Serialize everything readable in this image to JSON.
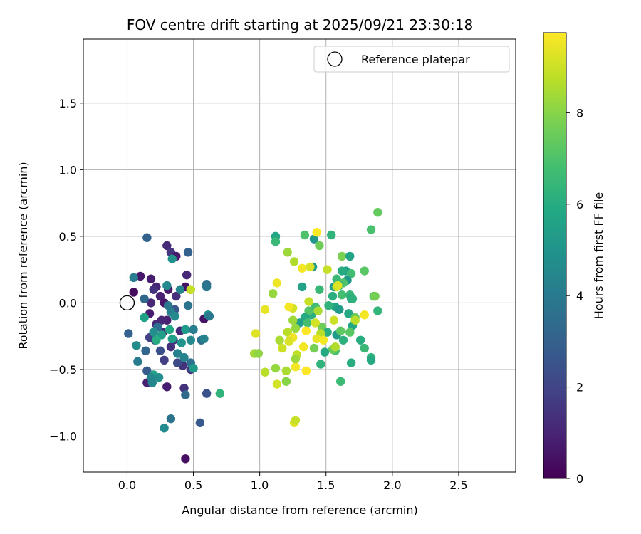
{
  "chart_data": {
    "type": "scatter",
    "title": "FOV centre drift starting at 2025/09/21 23:30:18",
    "xlabel": "Angular distance from reference (arcmin)",
    "ylabel": "Rotation from reference (arcmin)",
    "xlim": [
      -0.33,
      2.93
    ],
    "ylim": [
      -1.27,
      1.98
    ],
    "xticks": [
      0.0,
      0.5,
      1.0,
      1.5,
      2.0,
      2.5
    ],
    "yticks": [
      -1.0,
      -0.5,
      0.0,
      0.5,
      1.0,
      1.5
    ],
    "xtick_labels": [
      "0.0",
      "0.5",
      "1.0",
      "1.5",
      "2.0",
      "2.5"
    ],
    "ytick_labels": [
      "−1.0",
      "−0.5",
      "0.0",
      "0.5",
      "1.0",
      "1.5"
    ],
    "grid": true,
    "legend": {
      "position": "top-right",
      "label": "Reference platepar"
    },
    "reference_point": {
      "x": 0.0,
      "y": 0.0
    },
    "colorbar": {
      "label": "Hours from first FF file",
      "min": 0,
      "max": 9.75,
      "ticks": [
        0,
        2,
        4,
        6,
        8
      ],
      "tick_labels": [
        "0",
        "2",
        "4",
        "6",
        "8"
      ],
      "colormap": "viridis"
    },
    "points": [
      [
        0.05,
        0.08,
        0.3
      ],
      [
        0.1,
        0.2,
        0.6
      ],
      [
        0.18,
        0.18,
        0.8
      ],
      [
        0.22,
        0.12,
        1.0
      ],
      [
        0.18,
        0.0,
        1.1
      ],
      [
        0.25,
        0.05,
        0.9
      ],
      [
        0.3,
        0.43,
        1.2
      ],
      [
        0.33,
        0.38,
        1.5
      ],
      [
        0.37,
        0.35,
        0.7
      ],
      [
        0.45,
        0.21,
        1.1
      ],
      [
        0.2,
        0.1,
        1.4
      ],
      [
        0.28,
        0.0,
        0.6
      ],
      [
        0.31,
        0.1,
        0.7
      ],
      [
        0.37,
        0.05,
        1.3
      ],
      [
        0.44,
        0.12,
        0.5
      ],
      [
        0.17,
        -0.08,
        0.8
      ],
      [
        0.22,
        -0.16,
        1.0
      ],
      [
        0.27,
        -0.22,
        1.2
      ],
      [
        0.3,
        -0.13,
        0.9
      ],
      [
        0.35,
        -0.28,
        1.5
      ],
      [
        0.4,
        -0.21,
        1.1
      ],
      [
        0.33,
        -0.33,
        1.3
      ],
      [
        0.28,
        -0.43,
        1.8
      ],
      [
        0.21,
        -0.28,
        2.0
      ],
      [
        0.17,
        -0.26,
        1.9
      ],
      [
        0.15,
        -0.6,
        0.9
      ],
      [
        0.3,
        -0.63,
        0.8
      ],
      [
        0.43,
        -0.64,
        1.4
      ],
      [
        0.44,
        -1.17,
        0.4
      ],
      [
        0.58,
        -0.12,
        0.5
      ],
      [
        0.48,
        -0.5,
        1.6
      ],
      [
        0.42,
        -0.47,
        1.4
      ],
      [
        0.38,
        -0.45,
        2.2
      ],
      [
        0.6,
        -0.68,
        2.5
      ],
      [
        0.55,
        -0.9,
        2.7
      ],
      [
        0.26,
        -0.13,
        1.1
      ],
      [
        0.36,
        -0.05,
        2.6
      ],
      [
        0.25,
        -0.36,
        2.4
      ],
      [
        0.15,
        0.49,
        3.1
      ],
      [
        0.46,
        0.38,
        3.0
      ],
      [
        0.34,
        0.33,
        4.9
      ],
      [
        0.3,
        0.13,
        4.6
      ],
      [
        0.13,
        0.03,
        3.3
      ],
      [
        0.05,
        0.19,
        4.1
      ],
      [
        0.01,
        -0.23,
        3.0
      ],
      [
        0.07,
        -0.32,
        4.7
      ],
      [
        0.14,
        -0.36,
        3.2
      ],
      [
        0.08,
        -0.44,
        4.0
      ],
      [
        0.15,
        -0.51,
        2.8
      ],
      [
        0.19,
        -0.6,
        4.5
      ],
      [
        0.2,
        -0.54,
        5.6
      ],
      [
        0.24,
        -0.56,
        4.8
      ],
      [
        0.28,
        -0.94,
        4.6
      ],
      [
        0.33,
        -0.87,
        3.7
      ],
      [
        0.44,
        -0.69,
        3.4
      ],
      [
        0.48,
        -0.45,
        3.6
      ],
      [
        0.5,
        -0.49,
        5.2
      ],
      [
        0.56,
        -0.28,
        3.5
      ],
      [
        0.58,
        -0.27,
        4.3
      ],
      [
        0.61,
        -0.09,
        4.9
      ],
      [
        0.62,
        -0.1,
        3.9
      ],
      [
        0.6,
        0.14,
        3.5
      ],
      [
        0.6,
        0.12,
        3.8
      ],
      [
        0.48,
        0.1,
        3.0
      ],
      [
        0.4,
        0.1,
        4.4
      ],
      [
        0.46,
        -0.02,
        3.7
      ],
      [
        0.33,
        -0.07,
        4.2
      ],
      [
        0.31,
        -0.02,
        3.9
      ],
      [
        0.36,
        -0.1,
        4.6
      ],
      [
        0.34,
        -0.27,
        5.5
      ],
      [
        0.41,
        -0.3,
        5.0
      ],
      [
        0.43,
        -0.41,
        4.3
      ],
      [
        0.44,
        -0.2,
        5.3
      ],
      [
        0.5,
        -0.2,
        4.1
      ],
      [
        0.48,
        -0.28,
        4.6
      ],
      [
        0.38,
        -0.38,
        4.2
      ],
      [
        0.32,
        -0.2,
        5.8
      ],
      [
        0.26,
        -0.24,
        5.4
      ],
      [
        0.23,
        -0.18,
        3.5
      ],
      [
        0.2,
        -0.22,
        4.8
      ],
      [
        0.13,
        -0.11,
        5.5
      ],
      [
        0.22,
        -0.28,
        6.0
      ],
      [
        0.18,
        -0.56,
        4.4
      ],
      [
        0.7,
        -0.68,
        6.3
      ],
      [
        0.48,
        0.1,
        8.9
      ],
      [
        1.12,
        0.5,
        5.8
      ],
      [
        1.12,
        0.46,
        6.5
      ],
      [
        1.41,
        0.48,
        5.1
      ],
      [
        1.54,
        0.51,
        6.3
      ],
      [
        1.62,
        0.35,
        7.8
      ],
      [
        1.68,
        0.35,
        5.7
      ],
      [
        1.84,
        0.55,
        6.9
      ],
      [
        1.89,
        0.68,
        7.4
      ],
      [
        1.79,
        0.24,
        7.2
      ],
      [
        1.65,
        0.24,
        5.6
      ],
      [
        1.69,
        0.22,
        6.7
      ],
      [
        1.66,
        0.17,
        5.2
      ],
      [
        1.62,
        0.24,
        6.0
      ],
      [
        1.58,
        0.18,
        6.6
      ],
      [
        1.63,
        0.15,
        7.0
      ],
      [
        1.6,
        0.13,
        6.4
      ],
      [
        1.56,
        0.12,
        5.4
      ],
      [
        1.55,
        0.05,
        6.1
      ],
      [
        1.62,
        0.06,
        6.8
      ],
      [
        1.68,
        0.06,
        6.4
      ],
      [
        1.69,
        0.03,
        5.9
      ],
      [
        1.7,
        0.03,
        6.2
      ],
      [
        1.86,
        0.05,
        7.3
      ],
      [
        1.87,
        0.05,
        7.7
      ],
      [
        1.89,
        -0.06,
        6.4
      ],
      [
        1.67,
        -0.08,
        5.9
      ],
      [
        1.72,
        -0.11,
        7.5
      ],
      [
        1.7,
        -0.17,
        5.8
      ],
      [
        1.57,
        -0.03,
        5.7
      ],
      [
        1.52,
        -0.02,
        6.3
      ],
      [
        1.6,
        -0.05,
        5.3
      ],
      [
        1.45,
        0.1,
        6.5
      ],
      [
        1.32,
        0.12,
        5.6
      ],
      [
        1.4,
        0.27,
        5.4
      ],
      [
        1.34,
        0.51,
        7.0
      ],
      [
        1.45,
        0.43,
        7.6
      ],
      [
        1.39,
        -0.09,
        6.1
      ],
      [
        1.37,
        -0.06,
        7.1
      ],
      [
        1.42,
        -0.03,
        6.7
      ],
      [
        1.34,
        -0.11,
        5.9
      ],
      [
        1.3,
        -0.15,
        5.5
      ],
      [
        1.36,
        -0.15,
        6.8
      ],
      [
        1.47,
        -0.18,
        7.6
      ],
      [
        1.51,
        -0.22,
        6.1
      ],
      [
        1.58,
        -0.24,
        5.3
      ],
      [
        1.61,
        -0.21,
        7.3
      ],
      [
        1.63,
        -0.28,
        6.2
      ],
      [
        1.68,
        -0.22,
        7.2
      ],
      [
        1.76,
        -0.28,
        6.0
      ],
      [
        1.79,
        -0.34,
        6.5
      ],
      [
        1.84,
        -0.41,
        6.3
      ],
      [
        1.84,
        -0.43,
        5.9
      ],
      [
        1.69,
        -0.45,
        6.1
      ],
      [
        1.61,
        -0.59,
        6.6
      ],
      [
        1.57,
        -0.36,
        6.9
      ],
      [
        1.55,
        -0.35,
        7.4
      ],
      [
        1.49,
        -0.37,
        5.9
      ],
      [
        1.46,
        -0.46,
        6.3
      ],
      [
        1.41,
        -0.34,
        7.7
      ],
      [
        1.28,
        -0.39,
        8.8
      ],
      [
        1.2,
        -0.51,
        8.5
      ],
      [
        1.2,
        -0.59,
        8.0
      ],
      [
        1.13,
        -0.61,
        9.1
      ],
      [
        1.12,
        -0.49,
        8.2
      ],
      [
        1.04,
        -0.52,
        8.7
      ],
      [
        0.96,
        -0.38,
        8.4
      ],
      [
        0.99,
        -0.38,
        8.1
      ],
      [
        0.97,
        -0.23,
        9.3
      ],
      [
        1.04,
        -0.05,
        9.4
      ],
      [
        1.1,
        0.07,
        8.2
      ],
      [
        1.13,
        0.15,
        9.5
      ],
      [
        1.21,
        0.38,
        8.3
      ],
      [
        1.26,
        0.31,
        8.6
      ],
      [
        1.32,
        0.26,
        9.6
      ],
      [
        1.38,
        0.27,
        9.2
      ],
      [
        1.43,
        0.53,
        9.7
      ],
      [
        1.51,
        0.25,
        8.9
      ],
      [
        1.58,
        0.12,
        8.7
      ],
      [
        1.59,
        0.13,
        9.3
      ],
      [
        1.37,
        0.01,
        8.9
      ],
      [
        1.25,
        -0.04,
        9.1
      ],
      [
        1.22,
        -0.03,
        9.6
      ],
      [
        1.25,
        -0.13,
        8.3
      ],
      [
        1.15,
        -0.28,
        8.5
      ],
      [
        1.17,
        -0.34,
        9.0
      ],
      [
        1.21,
        -0.22,
        8.7
      ],
      [
        1.27,
        -0.19,
        8.2
      ],
      [
        1.25,
        -0.26,
        9.5
      ],
      [
        1.22,
        -0.29,
        9.2
      ],
      [
        1.33,
        -0.33,
        9.6
      ],
      [
        1.35,
        -0.21,
        9.8
      ],
      [
        1.42,
        -0.15,
        9.1
      ],
      [
        1.44,
        -0.06,
        8.5
      ],
      [
        1.46,
        -0.23,
        8.7
      ],
      [
        1.43,
        -0.27,
        9.4
      ],
      [
        1.48,
        -0.28,
        9.6
      ],
      [
        1.56,
        -0.13,
        9.0
      ],
      [
        1.57,
        -0.33,
        8.6
      ],
      [
        1.27,
        -0.48,
        9.6
      ],
      [
        1.27,
        -0.42,
        8.3
      ],
      [
        1.35,
        -0.51,
        9.8
      ],
      [
        1.26,
        -0.9,
        9.3
      ],
      [
        1.27,
        -0.88,
        8.9
      ],
      [
        1.79,
        -0.09,
        9.6
      ],
      [
        1.72,
        -0.13,
        8.7
      ]
    ]
  }
}
